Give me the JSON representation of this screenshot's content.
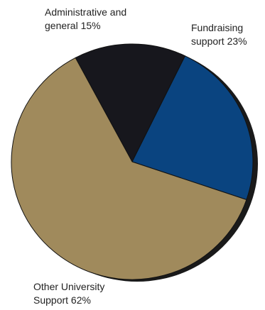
{
  "chart_data": {
    "type": "pie",
    "title": "",
    "slices": [
      {
        "label_line1": "Administrative and",
        "label_line2": "general 15%",
        "value": 15,
        "color": "#17171d"
      },
      {
        "label_line1": "Fundraising",
        "label_line2": "support 23%",
        "value": 23,
        "color": "#0a4480"
      },
      {
        "label_line1": "Other University",
        "label_line2": "Support 62%",
        "value": 62,
        "color": "#a08a5c"
      }
    ],
    "start_angle_deg": -118,
    "direction": "clockwise",
    "shadow_color": "#1a1a1a",
    "edge_color": "#111111"
  }
}
